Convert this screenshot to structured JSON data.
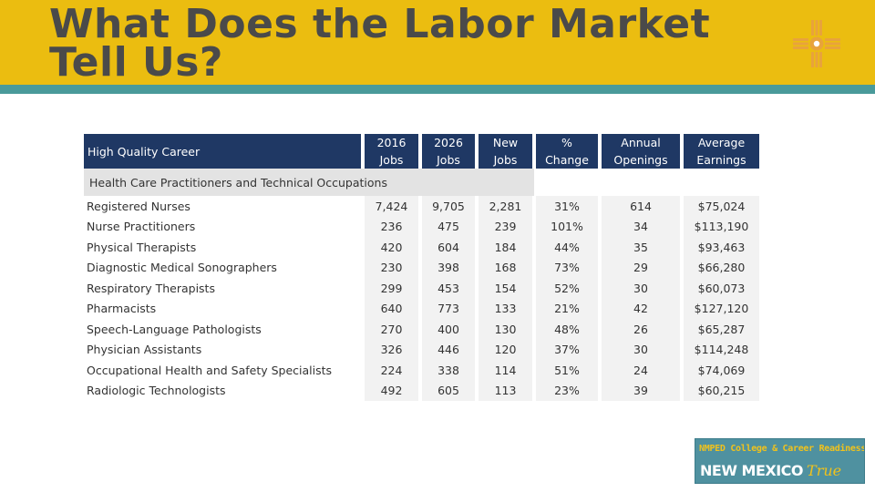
{
  "slide": {
    "title": "What Does the Labor Market Tell Us?"
  },
  "colors": {
    "header_band": "#ebbd10",
    "header_stripe": "#4a9a9a",
    "table_header": "#1f3864",
    "cell_fill": "#f2f2f2",
    "category_fill": "#e3e3e3",
    "logo_symbol": "#e8a33c"
  },
  "logo": {
    "icon": "zia-sun-symbol-icon"
  },
  "table": {
    "headers": {
      "career": "High Quality Career",
      "jobs_2016": [
        "2016",
        "Jobs"
      ],
      "jobs_2026": [
        "2026",
        "Jobs"
      ],
      "new_jobs": [
        "New",
        "Jobs"
      ],
      "pct_change": [
        "%",
        "Change"
      ],
      "annual_openings": [
        "Annual",
        "Openings"
      ],
      "avg_earnings": [
        "Average",
        "Earnings"
      ]
    },
    "category": "Health Care Practitioners and Technical Occupations",
    "rows": [
      {
        "career": "Registered Nurses",
        "jobs_2016": "7,424",
        "jobs_2026": "9,705",
        "new_jobs": "2,281",
        "pct_change": "31%",
        "openings": "614",
        "earnings": "$75,024"
      },
      {
        "career": "Nurse Practitioners",
        "jobs_2016": "236",
        "jobs_2026": "475",
        "new_jobs": "239",
        "pct_change": "101%",
        "openings": "34",
        "earnings": "$113,190"
      },
      {
        "career": "Physical Therapists",
        "jobs_2016": "420",
        "jobs_2026": "604",
        "new_jobs": "184",
        "pct_change": "44%",
        "openings": "35",
        "earnings": "$93,463"
      },
      {
        "career": "Diagnostic Medical Sonographers",
        "jobs_2016": "230",
        "jobs_2026": "398",
        "new_jobs": "168",
        "pct_change": "73%",
        "openings": "29",
        "earnings": "$66,280"
      },
      {
        "career": "Respiratory Therapists",
        "jobs_2016": "299",
        "jobs_2026": "453",
        "new_jobs": "154",
        "pct_change": "52%",
        "openings": "30",
        "earnings": "$60,073"
      },
      {
        "career": "Pharmacists",
        "jobs_2016": "640",
        "jobs_2026": "773",
        "new_jobs": "133",
        "pct_change": "21%",
        "openings": "42",
        "earnings": "$127,120"
      },
      {
        "career": "Speech-Language Pathologists",
        "jobs_2016": "270",
        "jobs_2026": "400",
        "new_jobs": "130",
        "pct_change": "48%",
        "openings": "26",
        "earnings": "$65,287"
      },
      {
        "career": "Physician Assistants",
        "jobs_2016": "326",
        "jobs_2026": "446",
        "new_jobs": "120",
        "pct_change": "37%",
        "openings": "30",
        "earnings": "$114,248"
      },
      {
        "career": "Occupational Health and Safety Specialists",
        "jobs_2016": "224",
        "jobs_2026": "338",
        "new_jobs": "114",
        "pct_change": "51%",
        "openings": "24",
        "earnings": "$74,069"
      },
      {
        "career": "Radiologic Technologists",
        "jobs_2016": "492",
        "jobs_2026": "605",
        "new_jobs": "113",
        "pct_change": "23%",
        "openings": "39",
        "earnings": "$60,215"
      }
    ]
  },
  "badge": {
    "line1": "NMPED College & Career Readiness is",
    "line2": "NEW MEXICO",
    "line2_accent": "True"
  }
}
